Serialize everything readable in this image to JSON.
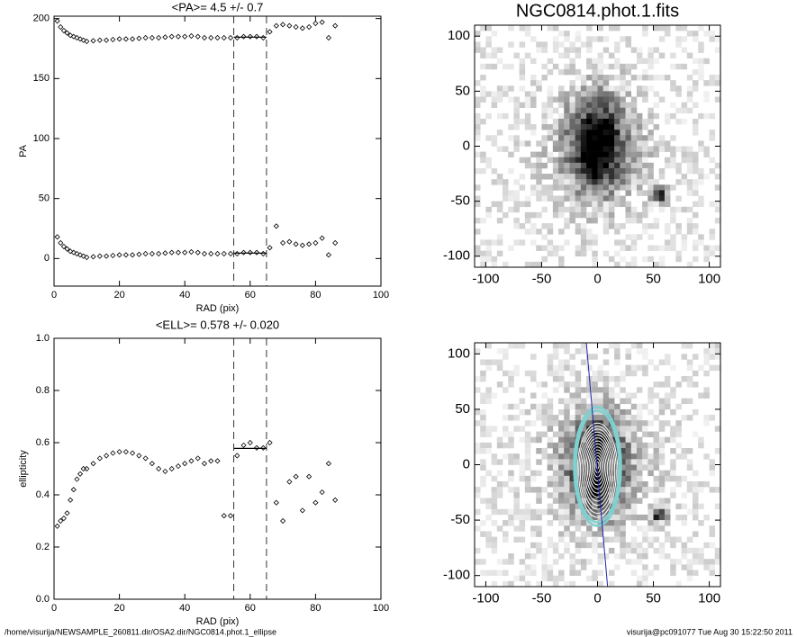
{
  "chart_data": [
    {
      "type": "scatter",
      "title": "<PA>=   4.5 +/-   0.7",
      "xlabel": "RAD (pix)",
      "ylabel": "PA",
      "xlim": [
        0,
        100
      ],
      "ylim": [
        -23,
        202
      ],
      "xticks": [
        0,
        20,
        40,
        60,
        80,
        100
      ],
      "yticks": [
        0,
        50,
        100,
        150,
        200
      ],
      "vlines": [
        55,
        65
      ],
      "hsegments": [
        {
          "x": [
            55,
            65
          ],
          "y": 4.5
        },
        {
          "x": [
            55,
            65
          ],
          "y": 184.5
        }
      ],
      "series": [
        {
          "color": "#000000",
          "x": [
            1,
            2,
            3,
            4,
            5,
            6,
            7,
            8,
            9,
            10,
            12,
            14,
            16,
            18,
            20,
            22,
            24,
            26,
            28,
            30,
            32,
            34,
            36,
            38,
            40,
            42,
            44,
            46,
            48,
            50,
            52,
            54,
            56,
            58,
            60,
            62,
            64,
            66,
            68,
            70,
            72,
            74,
            76,
            78,
            80,
            82,
            84,
            86
          ],
          "values": [
            18,
            13,
            10,
            8,
            6,
            5,
            4,
            3,
            2,
            1,
            1.5,
            2,
            2,
            2.5,
            3,
            3,
            3,
            3.5,
            4,
            4,
            4,
            4.5,
            5,
            5,
            5,
            5.5,
            5,
            4,
            4,
            4,
            4,
            4,
            4,
            5,
            5,
            5,
            4,
            9,
            27,
            13,
            14,
            12,
            11,
            12,
            13,
            17,
            3,
            13
          ]
        },
        {
          "color": "#000000",
          "x": [
            1,
            2,
            3,
            4,
            5,
            6,
            7,
            8,
            9,
            10,
            12,
            14,
            16,
            18,
            20,
            22,
            24,
            26,
            28,
            30,
            32,
            34,
            36,
            38,
            40,
            42,
            44,
            46,
            48,
            50,
            52,
            54,
            56,
            58,
            60,
            62,
            64,
            66,
            68,
            70,
            72,
            74,
            76,
            78,
            80,
            82,
            84,
            86
          ],
          "values": [
            198,
            193,
            190,
            188,
            186,
            185,
            184,
            183,
            182,
            181,
            181.5,
            182,
            182,
            182.5,
            183,
            183,
            183,
            183.5,
            184,
            184,
            184,
            184.5,
            185,
            185,
            185,
            185.5,
            185,
            184,
            184,
            184,
            184,
            184,
            184,
            185,
            185,
            185,
            184,
            189,
            194,
            195,
            194,
            193,
            192,
            193,
            196,
            197,
            184,
            194
          ]
        }
      ]
    },
    {
      "type": "scatter",
      "title": "<ELL>= 0.578 +/-  0.020",
      "xlabel": "RAD (pix)",
      "ylabel": "ellipticity",
      "xlim": [
        0,
        100
      ],
      "ylim": [
        0,
        1
      ],
      "xticks": [
        0,
        20,
        40,
        60,
        80,
        100
      ],
      "yticks": [
        {
          "value": 0,
          "label": "0.0"
        },
        0.2,
        0.4,
        0.6,
        0.8,
        {
          "value": 1,
          "label": "1.0"
        }
      ],
      "vlines": [
        55,
        65
      ],
      "hsegments": [
        {
          "x": [
            55,
            65
          ],
          "y": 0.578
        }
      ],
      "series": [
        {
          "color": "#000000",
          "x": [
            1,
            2,
            3,
            4,
            5,
            6,
            7,
            8,
            9,
            10,
            12,
            14,
            16,
            18,
            20,
            22,
            24,
            26,
            28,
            30,
            32,
            34,
            36,
            38,
            40,
            42,
            44,
            46,
            48,
            50,
            52,
            54,
            56,
            58,
            60,
            62,
            64,
            66,
            68,
            70,
            72,
            74,
            76,
            78,
            80,
            82,
            84,
            86
          ],
          "values": [
            0.28,
            0.3,
            0.31,
            0.33,
            0.38,
            0.42,
            0.46,
            0.48,
            0.5,
            0.5,
            0.52,
            0.54,
            0.55,
            0.56,
            0.565,
            0.565,
            0.56,
            0.55,
            0.54,
            0.52,
            0.5,
            0.49,
            0.5,
            0.51,
            0.52,
            0.53,
            0.54,
            0.52,
            0.53,
            0.53,
            0.32,
            0.32,
            0.55,
            0.59,
            0.6,
            0.58,
            0.58,
            0.6,
            0.37,
            0.3,
            0.45,
            0.47,
            0.34,
            0.47,
            0.37,
            0.41,
            0.52,
            0.38
          ]
        }
      ]
    },
    {
      "type": "image",
      "title": "NGC0814.phot.1.fits",
      "xlim": [
        -110,
        110
      ],
      "ylim": [
        -110,
        110
      ],
      "xticks": [
        -100,
        -50,
        0,
        50,
        100
      ],
      "yticks": [
        -100,
        -50,
        0,
        50,
        100
      ]
    },
    {
      "type": "image",
      "overlay": true,
      "xlim": [
        -110,
        110
      ],
      "ylim": [
        -110,
        110
      ],
      "xticks": [
        -100,
        -50,
        0,
        50,
        100
      ],
      "yticks": [
        -100,
        -50,
        0,
        50,
        100
      ]
    }
  ],
  "footer": {
    "left": "/home/visurija/NEWSAMPLE_260811.dir/OSA2.dir/NGC0814.phot.1_ellipse",
    "right": "visurija@pc091077  Tue Aug 30 15:22:50 2011"
  }
}
